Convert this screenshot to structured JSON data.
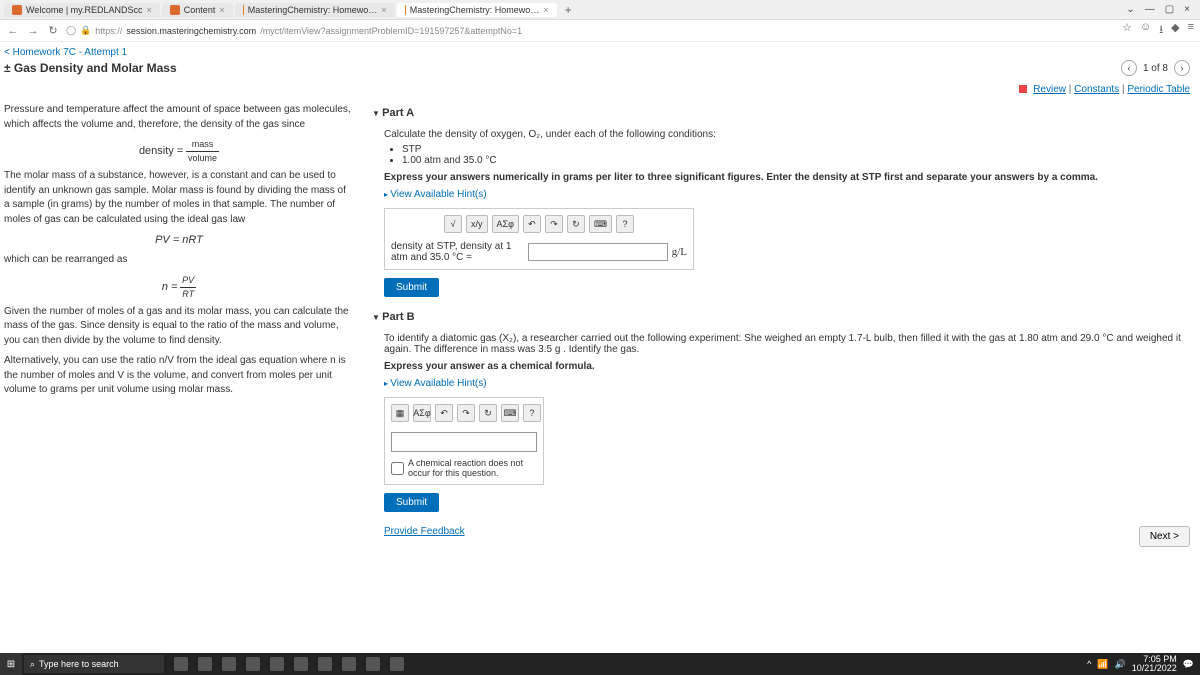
{
  "tabs": [
    {
      "label": "Welcome | my.REDLANDScc",
      "active": false
    },
    {
      "label": "Content",
      "active": false
    },
    {
      "label": "MasteringChemistry: Homewo…",
      "active": false
    },
    {
      "label": "MasteringChemistry: Homewo…",
      "active": true
    }
  ],
  "url": {
    "scheme": "https://",
    "host": "session.masteringchemistry.com",
    "path": "/myct/itemView?assignmentProblemID=191597257&attemptNo=1"
  },
  "back": "Homework 7C - Attempt 1",
  "title": "± Gas Density and Molar Mass",
  "pager": {
    "label": "1 of 8"
  },
  "review": {
    "review": "Review",
    "constants": "Constants",
    "pt": "Periodic Table"
  },
  "left": {
    "p1": "Pressure and temperature affect the amount of space between gas molecules, which affects the volume and, therefore, the density of the gas since",
    "eq1_l": "density =",
    "eq1_n": "mass",
    "eq1_d": "volume",
    "p2": "The molar mass of a substance, however, is a constant and can be used to identify an unknown gas sample. Molar mass is found by dividing the mass of a sample (in grams) by the number of moles in that sample. The number of moles of gas can be calculated using the ideal gas law",
    "eq2": "PV = nRT",
    "p3": "which can be rearranged as",
    "eq3_l": "n =",
    "eq3_n": "PV",
    "eq3_d": "RT",
    "p4": "Given the number of moles of a gas and its molar mass, you can calculate the mass of the gas. Since density is equal to the ratio of the mass and volume, you can then divide by the volume to find density.",
    "p5": "Alternatively, you can use the ratio n/V from the ideal gas equation where n is the number of moles and V is the volume, and convert from moles per unit volume to grams per unit volume using molar mass."
  },
  "partA": {
    "head": "Part A",
    "lead": "Calculate the density of oxygen, O₂, under each of the following conditions:",
    "b1": "STP",
    "b2": "1.00 atm and 35.0 °C",
    "instr": "Express your answers numerically in grams per liter to three significant figures. Enter the density at STP first and separate your answers by a comma.",
    "hints": "View Available Hint(s)",
    "line": "density at STP, density at 1 atm and 35.0 °C =",
    "unit": "g/L",
    "submit": "Submit",
    "tools": {
      "sqrt": "√",
      "frac": "x/y",
      "sigma": "ΑΣφ",
      "undo": "↶",
      "redo": "↷",
      "reset": "↻",
      "kbd": "⌨",
      "help": "?"
    }
  },
  "partB": {
    "head": "Part B",
    "lead": "To identify a diatomic gas (X₂), a researcher carried out the following experiment: She weighed an empty 1.7-L bulb, then filled it with the gas at 1.80 atm and 29.0 °C and weighed it again. The difference in mass was 3.5 g . Identify the gas.",
    "instr": "Express your answer as a chemical formula.",
    "hints": "View Available Hint(s)",
    "chk": "A chemical reaction does not occur for this question.",
    "submit": "Submit"
  },
  "footer": {
    "provide": "Provide Feedback",
    "next": "Next >"
  },
  "taskbar": {
    "search": "Type here to search",
    "time": "7:05 PM",
    "date": "10/21/2022"
  }
}
